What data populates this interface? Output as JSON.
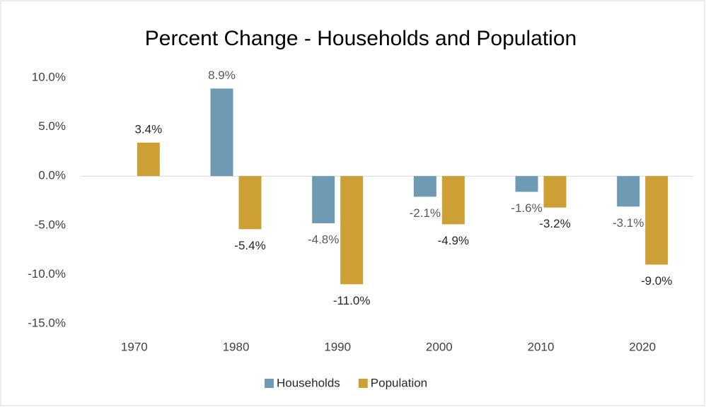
{
  "chart_data": {
    "type": "bar",
    "title": "Percent Change - Households and Population",
    "categories": [
      "1970",
      "1980",
      "1990",
      "2000",
      "2010",
      "2020"
    ],
    "series": [
      {
        "name": "Households",
        "color": "#6f9ab3",
        "values": [
          null,
          8.9,
          -4.8,
          -2.1,
          -1.6,
          -3.1
        ],
        "value_labels": [
          null,
          "8.9%",
          "-4.8%",
          "-2.1%",
          "-1.6%",
          "-3.1%"
        ]
      },
      {
        "name": "Population",
        "color": "#cca035",
        "values": [
          3.4,
          -5.4,
          -11.0,
          -4.9,
          -3.2,
          -9.0
        ],
        "value_labels": [
          "3.4%",
          "-5.4%",
          "-11.0%",
          "-4.9%",
          "-3.2%",
          "-9.0%"
        ]
      }
    ],
    "ylim": [
      -15,
      10
    ],
    "yticks": [
      {
        "value": 10,
        "label": "10.0%"
      },
      {
        "value": 5,
        "label": "5.0%"
      },
      {
        "value": 0,
        "label": "0.0%"
      },
      {
        "value": -5,
        "label": "-5.0%"
      },
      {
        "value": -10,
        "label": "-10.0%"
      },
      {
        "value": -15,
        "label": "-15.0%"
      }
    ],
    "grid": false,
    "legend": "bottom"
  }
}
